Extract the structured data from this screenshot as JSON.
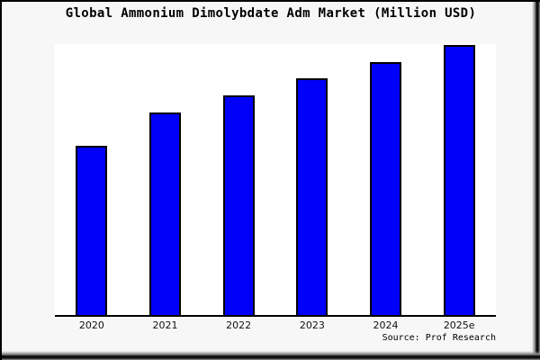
{
  "window": {
    "page_bg": "#f7f7f7",
    "plot_bg": "#ffffff",
    "frame_border_color": "#000000"
  },
  "footer": {
    "source": "Source: Prof Research"
  },
  "chart_data": {
    "type": "bar",
    "title": "Global Ammonium Dimolybdate Adm Market (Million USD)",
    "categories": [
      "2020",
      "2021",
      "2022",
      "2023",
      "2024",
      "2025e"
    ],
    "values": [
      62.7,
      75.0,
      81.3,
      87.7,
      93.7,
      100
    ],
    "xlabel": "",
    "ylabel": "",
    "ylim": [
      0,
      100.3
    ],
    "y_axis_visible": false,
    "grid": false,
    "legend": false,
    "bar_color": "#0000fa",
    "bar_border_color": "#000000",
    "axis_line_color": "#000000"
  }
}
